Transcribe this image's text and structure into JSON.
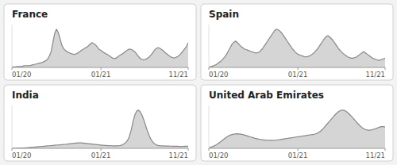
{
  "chart_data": [
    {
      "type": "area",
      "title": "France",
      "color": "#888888",
      "tick_labels": "x",
      "ylim": [
        0,
        0.952
      ],
      "categories": [
        "01/20",
        null,
        null,
        null,
        null,
        null,
        null,
        null,
        null,
        null,
        null,
        null,
        null,
        null,
        null,
        null,
        null,
        null,
        null,
        null,
        null,
        null,
        null,
        null,
        null,
        null,
        null,
        null,
        null,
        null,
        null,
        null,
        null,
        null,
        null,
        null,
        null,
        null,
        null,
        null,
        null,
        null,
        null,
        null,
        null,
        null,
        null,
        null,
        null,
        null,
        "01/21",
        null,
        null,
        null,
        null,
        null,
        null,
        null,
        null,
        null,
        null,
        null,
        null,
        null,
        null,
        null,
        null,
        null,
        null,
        null,
        null,
        null,
        null,
        null,
        null,
        null,
        null,
        null,
        null,
        null,
        null,
        null,
        null,
        null,
        null,
        null,
        null,
        null,
        null,
        null,
        null,
        null,
        null,
        null,
        null,
        null,
        null,
        null,
        null,
        "11/21"
      ],
      "values": [
        0.01,
        0.01,
        0.01,
        0.02,
        0.02,
        0.02,
        0.03,
        0.04,
        0.04,
        0.04,
        0.04,
        0.05,
        0.06,
        0.07,
        0.08,
        0.09,
        0.1,
        0.11,
        0.13,
        0.15,
        0.18,
        0.25,
        0.35,
        0.55,
        0.75,
        0.85,
        0.78,
        0.65,
        0.5,
        0.42,
        0.38,
        0.35,
        0.33,
        0.31,
        0.3,
        0.29,
        0.3,
        0.32,
        0.35,
        0.38,
        0.4,
        0.43,
        0.45,
        0.48,
        0.52,
        0.55,
        0.53,
        0.5,
        0.45,
        0.4,
        0.38,
        0.35,
        0.32,
        0.3,
        0.28,
        0.25,
        0.22,
        0.2,
        0.2,
        0.22,
        0.25,
        0.28,
        0.3,
        0.33,
        0.36,
        0.39,
        0.41,
        0.4,
        0.38,
        0.35,
        0.3,
        0.25,
        0.2,
        0.18,
        0.17,
        0.18,
        0.2,
        0.23,
        0.27,
        0.32,
        0.38,
        0.42,
        0.44,
        0.43,
        0.4,
        0.37,
        0.33,
        0.3,
        0.27,
        0.24,
        0.22,
        0.21,
        0.22,
        0.24,
        0.27,
        0.31,
        0.36,
        0.41,
        0.46,
        0.55
      ]
    },
    {
      "type": "area",
      "title": "Spain",
      "color": "#888888",
      "tick_labels": "x",
      "ylim": [
        0,
        0.6496
      ],
      "categories": [
        "01/20",
        null,
        null,
        null,
        null,
        null,
        null,
        null,
        null,
        null,
        null,
        null,
        null,
        null,
        null,
        null,
        null,
        null,
        null,
        null,
        null,
        null,
        null,
        null,
        null,
        null,
        null,
        null,
        null,
        null,
        null,
        null,
        null,
        null,
        null,
        null,
        null,
        null,
        null,
        null,
        null,
        null,
        null,
        null,
        null,
        null,
        null,
        null,
        null,
        null,
        "01/21",
        null,
        null,
        null,
        null,
        null,
        null,
        null,
        null,
        null,
        null,
        null,
        null,
        null,
        null,
        null,
        null,
        null,
        null,
        null,
        null,
        null,
        null,
        null,
        null,
        null,
        null,
        null,
        null,
        null,
        null,
        null,
        null,
        null,
        null,
        null,
        null,
        null,
        null,
        null,
        null,
        null,
        null,
        null,
        null,
        null,
        null,
        null,
        null,
        "11/21"
      ],
      "values": [
        0.01,
        0.01,
        0.02,
        0.03,
        0.04,
        0.06,
        0.08,
        0.1,
        0.13,
        0.16,
        0.2,
        0.25,
        0.3,
        0.35,
        0.38,
        0.4,
        0.38,
        0.35,
        0.32,
        0.3,
        0.28,
        0.27,
        0.26,
        0.25,
        0.24,
        0.23,
        0.22,
        0.22,
        0.23,
        0.25,
        0.28,
        0.32,
        0.36,
        0.4,
        0.44,
        0.48,
        0.52,
        0.56,
        0.58,
        0.57,
        0.55,
        0.52,
        0.48,
        0.44,
        0.4,
        0.36,
        0.32,
        0.28,
        0.25,
        0.22,
        0.2,
        0.19,
        0.18,
        0.17,
        0.16,
        0.16,
        0.17,
        0.18,
        0.2,
        0.22,
        0.25,
        0.28,
        0.32,
        0.36,
        0.4,
        0.44,
        0.47,
        0.48,
        0.46,
        0.43,
        0.4,
        0.36,
        0.32,
        0.28,
        0.25,
        0.22,
        0.2,
        0.18,
        0.16,
        0.15,
        0.14,
        0.14,
        0.15,
        0.16,
        0.18,
        0.2,
        0.22,
        0.24,
        0.22,
        0.2,
        0.18,
        0.16,
        0.14,
        0.13,
        0.12,
        0.11,
        0.11,
        0.12,
        0.13,
        0.14
      ]
    },
    {
      "type": "area",
      "title": "India",
      "color": "#888888",
      "tick_labels": "x",
      "ylim": [
        0,
        1.0976
      ],
      "categories": [
        "01/20",
        null,
        null,
        null,
        null,
        null,
        null,
        null,
        null,
        null,
        null,
        null,
        null,
        null,
        null,
        null,
        null,
        null,
        null,
        null,
        null,
        null,
        null,
        null,
        null,
        null,
        null,
        null,
        null,
        null,
        null,
        null,
        null,
        null,
        null,
        null,
        null,
        null,
        null,
        null,
        null,
        null,
        null,
        null,
        null,
        null,
        null,
        null,
        null,
        null,
        "01/21",
        null,
        null,
        null,
        null,
        null,
        null,
        null,
        null,
        null,
        null,
        null,
        null,
        null,
        null,
        null,
        null,
        null,
        null,
        null,
        null,
        null,
        null,
        null,
        null,
        null,
        null,
        null,
        null,
        null,
        null,
        null,
        null,
        null,
        null,
        null,
        null,
        null,
        null,
        null,
        null,
        null,
        null,
        null,
        null,
        null,
        null,
        null,
        null,
        "11/21"
      ],
      "values": [
        0.005,
        0.005,
        0.005,
        0.006,
        0.007,
        0.008,
        0.01,
        0.012,
        0.015,
        0.018,
        0.022,
        0.026,
        0.03,
        0.034,
        0.038,
        0.042,
        0.046,
        0.05,
        0.054,
        0.058,
        0.062,
        0.066,
        0.07,
        0.074,
        0.078,
        0.082,
        0.086,
        0.09,
        0.094,
        0.098,
        0.102,
        0.108,
        0.114,
        0.12,
        0.126,
        0.13,
        0.134,
        0.138,
        0.14,
        0.138,
        0.135,
        0.13,
        0.125,
        0.12,
        0.115,
        0.11,
        0.105,
        0.1,
        0.095,
        0.09,
        0.085,
        0.08,
        0.075,
        0.072,
        0.07,
        0.068,
        0.066,
        0.065,
        0.064,
        0.065,
        0.068,
        0.075,
        0.09,
        0.115,
        0.15,
        0.21,
        0.31,
        0.47,
        0.68,
        0.85,
        0.95,
        0.98,
        0.94,
        0.86,
        0.74,
        0.6,
        0.46,
        0.34,
        0.24,
        0.17,
        0.12,
        0.09,
        0.075,
        0.068,
        0.065,
        0.062,
        0.06,
        0.058,
        0.057,
        0.056,
        0.055,
        0.054,
        0.053,
        0.052,
        0.051,
        0.05,
        0.051,
        0.052,
        0.053,
        0.055
      ]
    },
    {
      "type": "area",
      "title": "United Arab Emirates",
      "color": "#888888",
      "tick_labels": "x",
      "ylim": [
        0,
        0.31136
      ],
      "categories": [
        "01/20",
        null,
        null,
        null,
        null,
        null,
        null,
        null,
        null,
        null,
        null,
        null,
        null,
        null,
        null,
        null,
        null,
        null,
        null,
        null,
        null,
        null,
        null,
        null,
        null,
        null,
        null,
        null,
        null,
        null,
        null,
        null,
        null,
        null,
        null,
        null,
        null,
        null,
        null,
        null,
        null,
        null,
        null,
        null,
        null,
        null,
        null,
        null,
        null,
        null,
        "01/21",
        null,
        null,
        null,
        null,
        null,
        null,
        null,
        null,
        null,
        null,
        null,
        null,
        null,
        null,
        null,
        null,
        null,
        null,
        null,
        null,
        null,
        null,
        null,
        null,
        null,
        null,
        null,
        null,
        null,
        null,
        null,
        null,
        null,
        null,
        null,
        null,
        null,
        null,
        null,
        null,
        null,
        null,
        null,
        null,
        null,
        null,
        null,
        null,
        "11/21"
      ],
      "values": [
        0.005,
        0.008,
        0.012,
        0.018,
        0.025,
        0.033,
        0.042,
        0.052,
        0.062,
        0.072,
        0.082,
        0.09,
        0.096,
        0.1,
        0.103,
        0.105,
        0.106,
        0.105,
        0.103,
        0.1,
        0.097,
        0.093,
        0.089,
        0.085,
        0.081,
        0.077,
        0.073,
        0.07,
        0.067,
        0.065,
        0.063,
        0.061,
        0.06,
        0.059,
        0.058,
        0.058,
        0.058,
        0.059,
        0.06,
        0.062,
        0.064,
        0.066,
        0.068,
        0.07,
        0.072,
        0.074,
        0.076,
        0.078,
        0.08,
        0.082,
        0.084,
        0.086,
        0.088,
        0.09,
        0.092,
        0.094,
        0.096,
        0.098,
        0.1,
        0.102,
        0.105,
        0.11,
        0.118,
        0.128,
        0.14,
        0.155,
        0.17,
        0.185,
        0.2,
        0.215,
        0.23,
        0.245,
        0.258,
        0.268,
        0.275,
        0.278,
        0.276,
        0.27,
        0.26,
        0.248,
        0.234,
        0.22,
        0.205,
        0.19,
        0.176,
        0.163,
        0.152,
        0.143,
        0.137,
        0.133,
        0.132,
        0.133,
        0.136,
        0.14,
        0.145,
        0.15,
        0.155,
        0.158,
        0.158,
        0.155
      ]
    }
  ]
}
